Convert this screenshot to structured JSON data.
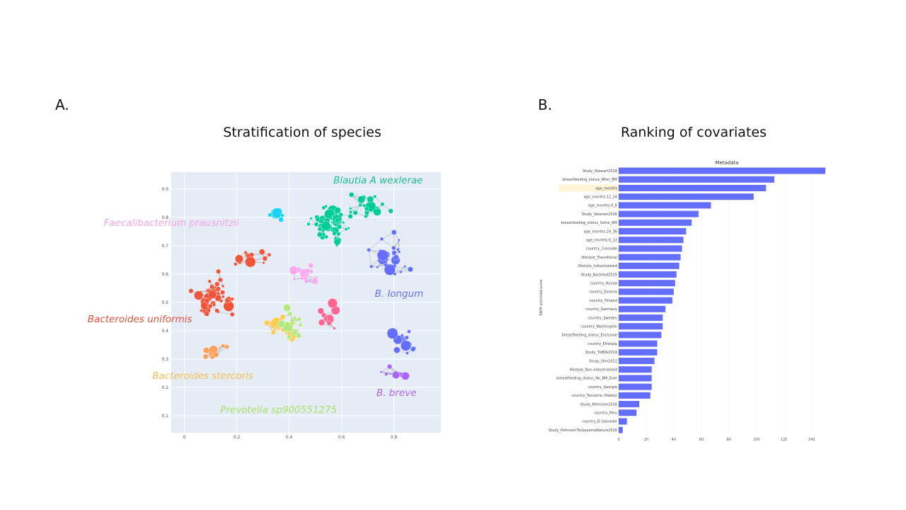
{
  "panels": {
    "a": {
      "letter": "A.",
      "title": "Stratification of species"
    },
    "b": {
      "letter": "B.",
      "title": "Ranking of covariates"
    }
  },
  "colors": {
    "network_bg": "#e5ecf6",
    "edge": "#9aa0a6",
    "bar": "#636efa",
    "highlight": "#fdf5d6"
  },
  "chart_data": [
    {
      "type": "scatter",
      "xlim": [
        -0.05,
        0.98
      ],
      "ylim": [
        0.04,
        0.96
      ],
      "x_ticks": [
        "0",
        "0.2",
        "0.4",
        "0.6",
        "0.8"
      ],
      "y_ticks": [
        "0.1",
        "0.2",
        "0.3",
        "0.4",
        "0.5",
        "0.6",
        "0.7",
        "0.8",
        "0.9"
      ],
      "x_tick_values": [
        0,
        0.2,
        0.4,
        0.6,
        0.8
      ],
      "y_tick_values": [
        0.1,
        0.2,
        0.3,
        0.4,
        0.5,
        0.6,
        0.7,
        0.8,
        0.9
      ],
      "grid": true,
      "annotations": [
        {
          "text": "Blautia A wexlerae",
          "color": "#1cbe8a",
          "x": 0.74,
          "y": 0.92
        },
        {
          "text": "Faecalibacterium prausnitzii",
          "color": "#f5a3e6",
          "x": -0.05,
          "y": 0.77
        },
        {
          "text": "B. longum",
          "color": "#6874e8",
          "x": 0.82,
          "y": 0.52
        },
        {
          "text": "Bacteroides uniformis",
          "color": "#e0533c",
          "x": -0.17,
          "y": 0.43
        },
        {
          "text": "Bacteroides stercoris",
          "color": "#f2c14e",
          "x": 0.07,
          "y": 0.23
        },
        {
          "text": "Prevotella sp900551275",
          "color": "#a8e06b",
          "x": 0.36,
          "y": 0.11
        },
        {
          "text": "B. breve",
          "color": "#b064e8",
          "x": 0.81,
          "y": 0.17
        }
      ],
      "clusters": [
        {
          "name": "Blautia A wexlerae",
          "color": "#00cc96",
          "x": 0.56,
          "y": 0.77,
          "sx": 0.07,
          "sy": 0.06,
          "n": 55
        },
        {
          "name": "Blautia A wexlerae",
          "color": "#00cc96",
          "x": 0.7,
          "y": 0.84,
          "sx": 0.06,
          "sy": 0.04,
          "n": 20
        },
        {
          "name": "Faecalibacterium prausnitzii",
          "color": "#f7a8ee",
          "x": 0.45,
          "y": 0.6,
          "sx": 0.05,
          "sy": 0.03,
          "n": 16
        },
        {
          "name": "B. longum",
          "color": "#636efa",
          "x": 0.79,
          "y": 0.67,
          "sx": 0.06,
          "sy": 0.06,
          "n": 28
        },
        {
          "name": "B. longum",
          "color": "#636efa",
          "x": 0.84,
          "y": 0.36,
          "sx": 0.04,
          "sy": 0.05,
          "n": 16
        },
        {
          "name": "Bacteroides uniformis",
          "color": "#ef553b",
          "x": 0.12,
          "y": 0.52,
          "sx": 0.07,
          "sy": 0.07,
          "n": 45
        },
        {
          "name": "Bacteroides uniformis",
          "color": "#ef553b",
          "x": 0.26,
          "y": 0.66,
          "sx": 0.06,
          "sy": 0.05,
          "n": 14
        },
        {
          "name": "Bacteroides stercoris",
          "color": "#fecb52",
          "x": 0.37,
          "y": 0.42,
          "sx": 0.05,
          "sy": 0.04,
          "n": 16
        },
        {
          "name": "Prevotella sp900551275",
          "color": "#b6e880",
          "x": 0.41,
          "y": 0.42,
          "sx": 0.04,
          "sy": 0.05,
          "n": 22
        },
        {
          "name": "B. breve",
          "color": "#ab63fa",
          "x": 0.8,
          "y": 0.25,
          "sx": 0.05,
          "sy": 0.03,
          "n": 8
        },
        {
          "name": "",
          "color": "#19d3f3",
          "x": 0.36,
          "y": 0.8,
          "sx": 0.03,
          "sy": 0.03,
          "n": 7
        },
        {
          "name": "",
          "color": "#ff6692",
          "x": 0.55,
          "y": 0.45,
          "sx": 0.05,
          "sy": 0.05,
          "n": 10
        },
        {
          "name": "",
          "color": "#ffa15a",
          "x": 0.12,
          "y": 0.32,
          "sx": 0.04,
          "sy": 0.03,
          "n": 8
        }
      ]
    },
    {
      "type": "bar",
      "orientation": "horizontal",
      "title": "Metadata",
      "ylabel": "SAFE enriched score",
      "xlim": [
        0,
        150
      ],
      "x_ticks": [
        0,
        20,
        40,
        60,
        80,
        100,
        120,
        140
      ],
      "highlighted": [
        "age_months"
      ],
      "categories": [
        "Study_Stewart2018",
        "breastfeeding_status_After_BM",
        "age_months",
        "age_months.12_24",
        "age_months.0_6",
        "Study_Vatanen2016",
        "breastfeeding_status_Some_BM",
        "age_months.24_36",
        "age_months.6_12",
        "country_Colorado",
        "lifestyle_Transitional",
        "lifestyle_Industrialized",
        "Study_Backhed2015",
        "country_Russia",
        "country_Estonia",
        "country_Finland",
        "country_Germany",
        "country_Sweden",
        "country_Washington",
        "breastfeeding_status_Exclusive",
        "country_Ethiopia",
        "Study_TidEAl2019",
        "Study_Olm2022",
        "lifestyle_Non-industrialized",
        "breastfeeding_status_No_BM_Ever",
        "country_Georgia",
        "country_Tanzania (Hadza)",
        "Study_Pehrsson2016",
        "country_Peru",
        "country_El Salvador",
        "Study_PehrssonTsukayamaNature2016"
      ],
      "values": [
        150,
        113,
        107,
        98,
        67,
        58,
        53,
        49,
        47,
        46,
        45,
        44,
        42,
        41,
        40,
        39,
        34,
        32,
        32,
        31,
        28,
        28,
        26,
        24,
        24,
        24,
        23,
        15,
        13,
        6,
        3
      ]
    }
  ]
}
